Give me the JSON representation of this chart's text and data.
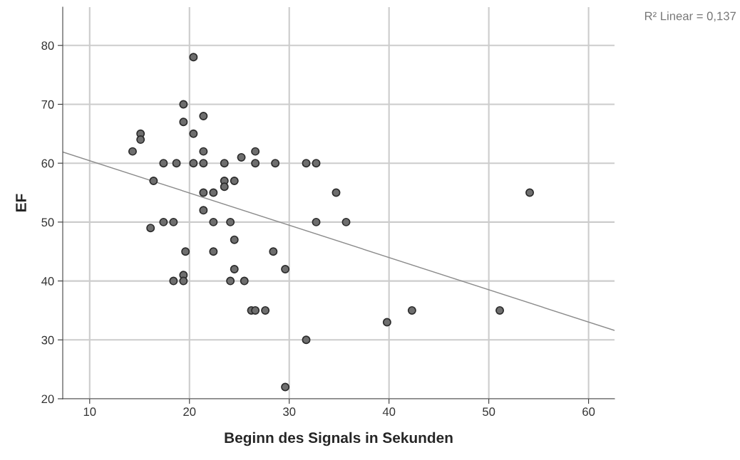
{
  "chart_data": {
    "type": "scatter",
    "xlabel": "Beginn des Signals in Sekunden",
    "ylabel": "EF",
    "annotations": [
      "R² Linear = 0,137"
    ],
    "xlim": [
      7.3,
      62.6
    ],
    "ylim": [
      20,
      86.5
    ],
    "xticks": [
      10,
      20,
      30,
      40,
      50,
      60
    ],
    "yticks": [
      20,
      30,
      40,
      50,
      60,
      70,
      80
    ],
    "grid": true,
    "marker": "circle",
    "series": [
      {
        "color": "#6e6e6e",
        "x": [
          14.3,
          15.1,
          15.1,
          16.4,
          16.1,
          17.4,
          17.4,
          18.4,
          18.4,
          18.7,
          19.4,
          19.4,
          19.4,
          19.4,
          19.6,
          20.4,
          20.4,
          20.4,
          21.4,
          21.4,
          21.4,
          21.4,
          21.4,
          22.4,
          22.4,
          22.4,
          23.5,
          23.5,
          23.5,
          24.5,
          24.5,
          24.5,
          24.1,
          24.1,
          25.2,
          25.5,
          26.6,
          26.6,
          26.2,
          26.6,
          27.6,
          28.6,
          28.4,
          29.6,
          29.6,
          31.7,
          31.7,
          32.7,
          32.7,
          34.7,
          35.7,
          39.8,
          42.3,
          51.1,
          54.1
        ],
        "values": [
          62,
          65,
          64,
          57,
          49,
          60,
          50,
          50,
          40,
          60,
          70,
          67,
          41,
          40,
          45,
          78,
          65,
          60,
          68,
          62,
          60,
          55,
          52,
          55,
          50,
          45,
          60,
          57,
          56,
          57,
          47,
          42,
          50,
          40,
          61,
          40,
          62,
          60,
          35,
          35,
          35,
          60,
          45,
          42,
          22,
          60,
          30,
          60,
          50,
          55,
          50,
          33,
          35,
          35,
          55
        ]
      },
      {
        "type": "line",
        "color": "#8c8c8c",
        "marker": "none",
        "x": [
          7.3,
          62.6
        ],
        "values": [
          61.9,
          31.6
        ]
      }
    ]
  }
}
